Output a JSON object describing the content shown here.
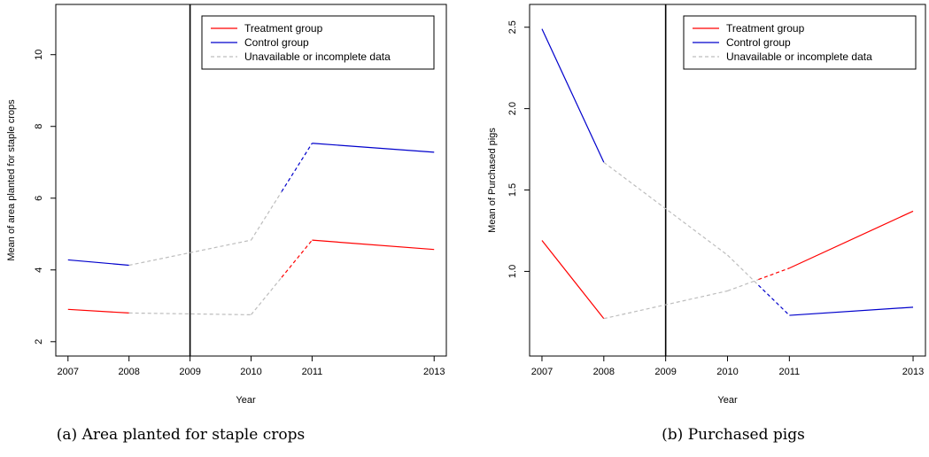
{
  "chart_data": [
    {
      "type": "line",
      "caption": "(a) Area planted for staple crops",
      "xlabel": "Year",
      "ylabel": "Mean of area planted for staple crops",
      "x_ticks": [
        "2007",
        "2008",
        "2009",
        "2010",
        "2011",
        "2013"
      ],
      "y_ticks": [
        "2",
        "4",
        "6",
        "8",
        "10"
      ],
      "x_range": [
        2006.8,
        2013.2
      ],
      "y_range": [
        1.6,
        11.4
      ],
      "reference_line_x": 2009,
      "legend": {
        "placement": "top-right",
        "entries": [
          "Treatment group",
          "Control group",
          "Unavailable or incomplete data"
        ]
      },
      "series": [
        {
          "name": "Treatment group",
          "color": "#ff0000",
          "x": [
            2007,
            2008,
            2010,
            2011,
            2013
          ],
          "y": [
            2.9,
            2.8,
            2.75,
            4.83,
            4.57
          ]
        },
        {
          "name": "Control group",
          "color": "#0000cc",
          "x": [
            2007,
            2008,
            2010,
            2011,
            2013
          ],
          "y": [
            4.28,
            4.13,
            4.83,
            7.53,
            7.28
          ]
        }
      ]
    },
    {
      "type": "line",
      "caption": "(b) Purchased pigs",
      "xlabel": "Year",
      "ylabel": "Mean of Purchased pigs",
      "x_ticks": [
        "2007",
        "2008",
        "2009",
        "2010",
        "2011",
        "2013"
      ],
      "y_ticks": [
        "1.0",
        "1.5",
        "2.0",
        "2.5"
      ],
      "x_range": [
        2006.8,
        2013.2
      ],
      "y_range": [
        0.48,
        2.64
      ],
      "reference_line_x": 2009,
      "legend": {
        "placement": "top-right",
        "entries": [
          "Treatment group",
          "Control group",
          "Unavailable or incomplete data"
        ]
      },
      "series": [
        {
          "name": "Treatment group",
          "color": "#ff0000",
          "x": [
            2007,
            2008,
            2010,
            2011,
            2013
          ],
          "y": [
            1.19,
            0.71,
            0.88,
            1.02,
            1.37
          ]
        },
        {
          "name": "Control group",
          "color": "#0000cc",
          "x": [
            2007,
            2008,
            2010,
            2011,
            2013
          ],
          "y": [
            2.49,
            1.67,
            1.1,
            0.73,
            0.78
          ]
        }
      ]
    }
  ]
}
